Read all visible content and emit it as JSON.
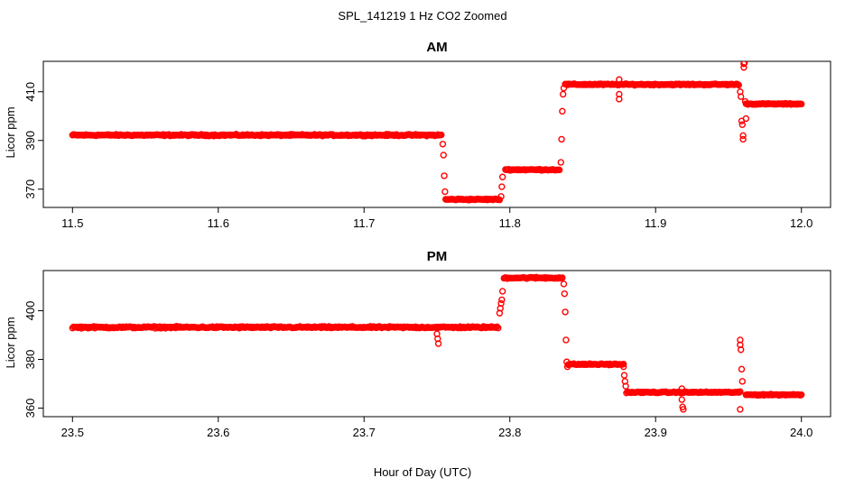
{
  "figure": {
    "title": "SPL_141219  1 Hz CO2 Zoomed",
    "xlabel": "Hour of Day (UTC)"
  },
  "colors": {
    "points": "#ff0000",
    "axis": "#000000",
    "background": "#ffffff"
  },
  "chart_data": [
    {
      "type": "scatter",
      "title": "AM",
      "xlabel": "",
      "ylabel": "Licor ppm",
      "xlim": [
        11.48,
        12.02
      ],
      "ylim": [
        362.5,
        422.5
      ],
      "xticks": [
        "11.5",
        "11.6",
        "11.7",
        "11.8",
        "11.9",
        "12.0"
      ],
      "yticks": [
        "370",
        "390",
        "410"
      ],
      "grid": false,
      "marker": "open-circle",
      "sample_rate": "1 Hz",
      "segments": [
        {
          "x": [
            11.5,
            11.753
          ],
          "y": 392.2,
          "noise": 0.45
        },
        {
          "x": [
            11.756,
            11.793
          ],
          "y": 365.8,
          "noise": 0.4
        },
        {
          "x": [
            11.797,
            11.834
          ],
          "y": 378.0,
          "noise": 0.35
        },
        {
          "x": [
            11.838,
            11.957
          ],
          "y": 413.0,
          "noise": 0.4
        },
        {
          "x": [
            11.962,
            12.0
          ],
          "y": 405.0,
          "noise": 0.35
        }
      ],
      "points": [
        [
          11.754,
          388.5
        ],
        [
          11.7545,
          384.0
        ],
        [
          11.755,
          375.5
        ],
        [
          11.7555,
          369.0
        ],
        [
          11.794,
          367.0
        ],
        [
          11.7945,
          371.0
        ],
        [
          11.795,
          375.0
        ],
        [
          11.835,
          381.0
        ],
        [
          11.8355,
          390.5
        ],
        [
          11.836,
          402.0
        ],
        [
          11.8365,
          409.0
        ],
        [
          11.837,
          411.5
        ],
        [
          11.875,
          415.0
        ],
        [
          11.875,
          409.0
        ],
        [
          11.875,
          407.0
        ],
        [
          11.958,
          410.0
        ],
        [
          11.9585,
          408.0
        ],
        [
          11.959,
          398.0
        ],
        [
          11.9595,
          396.5
        ],
        [
          11.96,
          392.0
        ],
        [
          11.96,
          390.5
        ],
        [
          11.9605,
          421.5
        ],
        [
          11.9605,
          420.0
        ],
        [
          11.961,
          422.0
        ],
        [
          11.9615,
          406.0
        ],
        [
          11.962,
          399.0
        ]
      ]
    },
    {
      "type": "scatter",
      "title": "PM",
      "xlabel": "Hour of Day (UTC)",
      "ylabel": "Licor ppm",
      "xlim": [
        23.48,
        24.02
      ],
      "ylim": [
        356.5,
        416.5
      ],
      "xticks": [
        "23.5",
        "23.6",
        "23.7",
        "23.8",
        "23.9",
        "24.0"
      ],
      "yticks": [
        "360",
        "380",
        "400"
      ],
      "grid": false,
      "marker": "open-circle",
      "sample_rate": "1 Hz",
      "segments": [
        {
          "x": [
            23.5,
            23.792
          ],
          "y": 393.2,
          "noise": 0.5
        },
        {
          "x": [
            23.796,
            23.836
          ],
          "y": 413.5,
          "noise": 0.45
        },
        {
          "x": [
            23.84,
            23.878
          ],
          "y": 378.0,
          "noise": 0.4
        },
        {
          "x": [
            23.88,
            23.958
          ],
          "y": 366.5,
          "noise": 0.35
        },
        {
          "x": [
            23.962,
            24.0
          ],
          "y": 365.5,
          "noise": 0.35
        }
      ],
      "points": [
        [
          23.75,
          393.0
        ],
        [
          23.75,
          390.5
        ],
        [
          23.7505,
          388.5
        ],
        [
          23.751,
          386.5
        ],
        [
          23.793,
          399.0
        ],
        [
          23.7935,
          401.0
        ],
        [
          23.794,
          403.0
        ],
        [
          23.7945,
          404.5
        ],
        [
          23.795,
          408.0
        ],
        [
          23.837,
          411.0
        ],
        [
          23.8375,
          407.0
        ],
        [
          23.838,
          399.5
        ],
        [
          23.8385,
          388.0
        ],
        [
          23.839,
          379.0
        ],
        [
          23.8395,
          377.0
        ],
        [
          23.878,
          377.0
        ],
        [
          23.8785,
          373.5
        ],
        [
          23.879,
          371.0
        ],
        [
          23.8795,
          369.0
        ],
        [
          23.918,
          368.0
        ],
        [
          23.918,
          363.5
        ],
        [
          23.9185,
          360.5
        ],
        [
          23.919,
          359.5
        ],
        [
          23.958,
          388.0
        ],
        [
          23.958,
          386.0
        ],
        [
          23.9585,
          384.0
        ],
        [
          23.959,
          376.0
        ],
        [
          23.9595,
          371.0
        ],
        [
          23.958,
          359.5
        ]
      ]
    }
  ]
}
